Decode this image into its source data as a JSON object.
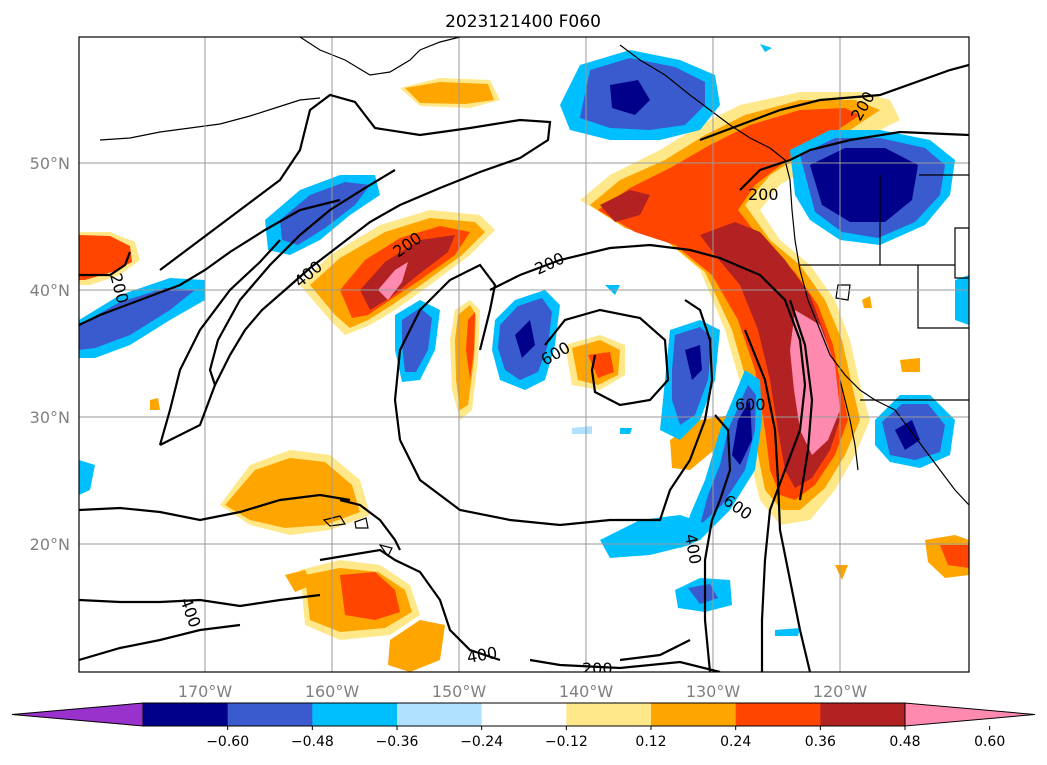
{
  "title": "2023121400 F060",
  "map": {
    "lon_range": [
      -180,
      -110
    ],
    "lat_range": [
      10,
      60
    ],
    "lon_ticks": [
      "170°W",
      "160°W",
      "150°W",
      "140°W",
      "130°W",
      "120°W"
    ],
    "lat_ticks": [
      "20°N",
      "30°N",
      "40°N",
      "50°N"
    ],
    "grid": true,
    "contour_labels": [
      "200",
      "200",
      "200",
      "200",
      "200",
      "400",
      "400",
      "400",
      "400",
      "600",
      "600",
      "600"
    ]
  },
  "colorbar": {
    "ticks": [
      "−0.60",
      "−0.48",
      "−0.36",
      "−0.24",
      "−0.12",
      "0.12",
      "0.24",
      "0.36",
      "0.48",
      "0.60"
    ],
    "colors": [
      "#9932cc",
      "#00008b",
      "#3a5bcd",
      "#00bfff",
      "#b0e2ff",
      "#ffffff",
      "#ffe88a",
      "#ffa500",
      "#ff4500",
      "#b22222",
      "#ff8ab0"
    ],
    "extend": "both"
  }
}
